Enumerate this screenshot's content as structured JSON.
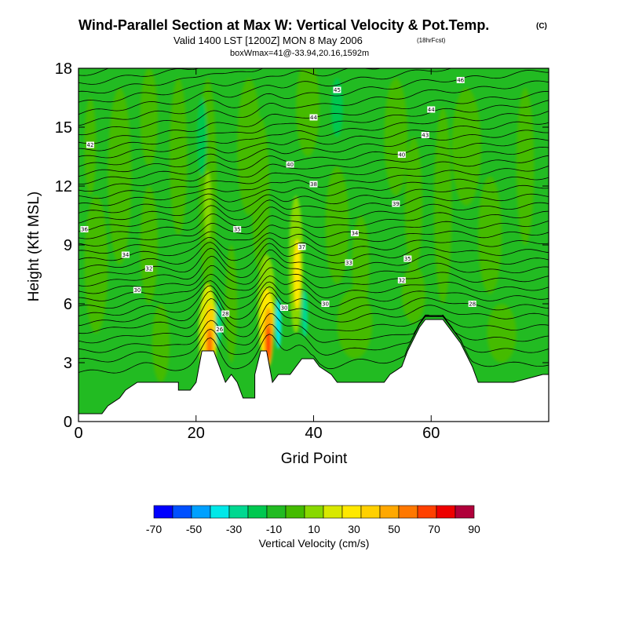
{
  "chart_data": {
    "type": "heatmap",
    "title": "Wind-Parallel Section at Max W: Vertical Velocity & Pot.Temp.",
    "title_mark": "(C)",
    "subtitle": "Valid 1400 LST [1200Z] MON 8 May 2006",
    "subtitle_note": "(18hrFcst)",
    "info": "boxWmax=41@-33.94,20.16,1592m",
    "xlabel": "Grid Point",
    "ylabel": "Height (Kft MSL)",
    "xlim": [
      0,
      80
    ],
    "ylim": [
      0,
      18
    ],
    "xticks": [
      0,
      20,
      40,
      60
    ],
    "yticks": [
      0,
      3,
      6,
      9,
      12,
      15,
      18
    ],
    "background_value": -5,
    "colorbar": {
      "label": "Vertical Velocity (cm/s)",
      "tick_labels": [
        "-70",
        "-50",
        "-30",
        "-10",
        "10",
        "30",
        "50",
        "70",
        "90"
      ],
      "bin_edges": [
        -70,
        -60,
        -50,
        -40,
        -30,
        -20,
        -10,
        0,
        10,
        20,
        30,
        40,
        50,
        60,
        70,
        80,
        90
      ],
      "colors": [
        "#0000ff",
        "#0050ff",
        "#00a0ff",
        "#00e8e8",
        "#00d890",
        "#00c850",
        "#22bb22",
        "#44bb00",
        "#88d800",
        "#d8e800",
        "#ffe800",
        "#ffd000",
        "#ffa800",
        "#ff7800",
        "#ff4000",
        "#ee0000",
        "#b0003a"
      ]
    },
    "terrain": [
      [
        0,
        0.4
      ],
      [
        4,
        0.4
      ],
      [
        5,
        0.8
      ],
      [
        7,
        1.2
      ],
      [
        8,
        1.6
      ],
      [
        10,
        2.0
      ],
      [
        17,
        2.0
      ],
      [
        17,
        1.6
      ],
      [
        19,
        1.6
      ],
      [
        20,
        2.0
      ],
      [
        21,
        3.6
      ],
      [
        23,
        3.6
      ],
      [
        24,
        2.8
      ],
      [
        25,
        2.0
      ],
      [
        26,
        2.4
      ],
      [
        27,
        2.0
      ],
      [
        28,
        1.2
      ],
      [
        30,
        1.2
      ],
      [
        30,
        2.4
      ],
      [
        31,
        3.6
      ],
      [
        32,
        3.6
      ],
      [
        33,
        2.0
      ],
      [
        34,
        2.4
      ],
      [
        36,
        2.4
      ],
      [
        37,
        2.8
      ],
      [
        38,
        3.2
      ],
      [
        40,
        3.2
      ],
      [
        41,
        2.8
      ],
      [
        43,
        2.4
      ],
      [
        44,
        2.0
      ],
      [
        52,
        2.0
      ],
      [
        53,
        2.4
      ],
      [
        55,
        2.8
      ],
      [
        56,
        3.6
      ],
      [
        58,
        4.8
      ],
      [
        59,
        5.2
      ],
      [
        62,
        5.2
      ],
      [
        63,
        4.8
      ],
      [
        65,
        4.0
      ],
      [
        67,
        2.8
      ],
      [
        68,
        2.0
      ],
      [
        73,
        2.0
      ],
      [
        74,
        2.0
      ],
      [
        79,
        2.4
      ],
      [
        80,
        2.4
      ]
    ],
    "field": [
      {
        "x": 2,
        "y": 14.0,
        "rx": 1.0,
        "ry": 2.5,
        "value": 5
      },
      {
        "x": 3,
        "y": 8.0,
        "rx": 2.0,
        "ry": 3.5,
        "value": 5
      },
      {
        "x": 7,
        "y": 12.5,
        "rx": 2.0,
        "ry": 4.5,
        "value": 5
      },
      {
        "x": 12,
        "y": 15.5,
        "rx": 1.5,
        "ry": 2.5,
        "value": 5
      },
      {
        "x": 12,
        "y": 9.0,
        "rx": 1.5,
        "ry": 3.0,
        "value": 5
      },
      {
        "x": 14,
        "y": 4.0,
        "rx": 1.5,
        "ry": 2.0,
        "value": 5
      },
      {
        "x": 17,
        "y": 13.5,
        "rx": 1.5,
        "ry": 4.0,
        "value": 5
      },
      {
        "x": 22,
        "y": 12.0,
        "rx": 1.5,
        "ry": 5.5,
        "value": 5
      },
      {
        "x": 22,
        "y": 11.0,
        "rx": 0.6,
        "ry": 1.8,
        "value": 15
      },
      {
        "x": 22,
        "y": 4.5,
        "rx": 1.5,
        "ry": 2.5,
        "value": 25
      },
      {
        "x": 22.3,
        "y": 4.2,
        "rx": 0.9,
        "ry": 1.8,
        "value": 45
      },
      {
        "x": 22.3,
        "y": 3.8,
        "rx": 0.5,
        "ry": 1.0,
        "value": 65
      },
      {
        "x": 23.8,
        "y": 5.0,
        "rx": 0.5,
        "ry": 1.2,
        "value": -30
      },
      {
        "x": 26,
        "y": 6.0,
        "rx": 1.0,
        "ry": 3.0,
        "value": 5
      },
      {
        "x": 29,
        "y": 14.0,
        "rx": 2.0,
        "ry": 3.5,
        "value": 5
      },
      {
        "x": 31,
        "y": 11.5,
        "rx": 1.5,
        "ry": 4.0,
        "value": 5
      },
      {
        "x": 32,
        "y": 6.0,
        "rx": 1.5,
        "ry": 2.5,
        "value": 15
      },
      {
        "x": 32,
        "y": 4.8,
        "rx": 1.2,
        "ry": 2.0,
        "value": 35
      },
      {
        "x": 32.3,
        "y": 4.3,
        "rx": 0.8,
        "ry": 1.5,
        "value": 55
      },
      {
        "x": 32.3,
        "y": 4.0,
        "rx": 0.4,
        "ry": 0.9,
        "value": 75
      },
      {
        "x": 34,
        "y": 5.0,
        "rx": 0.5,
        "ry": 1.3,
        "value": -40
      },
      {
        "x": 37,
        "y": 8.0,
        "rx": 1.2,
        "ry": 3.5,
        "value": 15
      },
      {
        "x": 37.2,
        "y": 7.5,
        "rx": 0.6,
        "ry": 1.8,
        "value": 35
      },
      {
        "x": 38.5,
        "y": 5.5,
        "rx": 0.5,
        "ry": 1.2,
        "value": -30
      },
      {
        "x": 39,
        "y": 16.0,
        "rx": 2.0,
        "ry": 2.5,
        "value": 5
      },
      {
        "x": 44,
        "y": 10.0,
        "rx": 2.0,
        "ry": 3.0,
        "value": 5
      },
      {
        "x": 47,
        "y": 5.0,
        "rx": 3.0,
        "ry": 1.8,
        "value": 5
      },
      {
        "x": 48,
        "y": 8.0,
        "rx": 1.5,
        "ry": 2.5,
        "value": 5
      },
      {
        "x": 54,
        "y": 14.5,
        "rx": 2.0,
        "ry": 3.0,
        "value": 5
      },
      {
        "x": 57,
        "y": 11.0,
        "rx": 1.5,
        "ry": 3.5,
        "value": 5
      },
      {
        "x": 57,
        "y": 6.5,
        "rx": 2.0,
        "ry": 1.5,
        "value": 5
      },
      {
        "x": 62,
        "y": 11.0,
        "rx": 1.5,
        "ry": 5.0,
        "value": 5
      },
      {
        "x": 66,
        "y": 14.0,
        "rx": 2.5,
        "ry": 3.0,
        "value": 5
      },
      {
        "x": 70,
        "y": 9.5,
        "rx": 2.0,
        "ry": 3.0,
        "value": 5
      },
      {
        "x": 72,
        "y": 4.5,
        "rx": 2.5,
        "ry": 1.5,
        "value": 5
      },
      {
        "x": 76,
        "y": 13.0,
        "rx": 1.5,
        "ry": 4.0,
        "value": 5
      },
      {
        "x": 21,
        "y": 14.5,
        "rx": 0.8,
        "ry": 2.0,
        "value": -15
      },
      {
        "x": 44,
        "y": 16.0,
        "rx": 1.0,
        "ry": 1.5,
        "value": -15
      }
    ],
    "contours": {
      "count": 36,
      "base_heights": [
        2.5,
        3.1,
        3.6,
        4.1,
        4.6,
        5.0,
        5.4,
        5.8,
        6.2,
        6.6,
        7.0,
        7.4,
        7.8,
        8.2,
        8.6,
        9.0,
        9.4,
        9.8,
        10.2,
        10.6,
        11.0,
        11.4,
        11.8,
        12.2,
        12.6,
        13.0,
        13.4,
        13.8,
        14.2,
        14.7,
        15.2,
        15.7,
        16.2,
        16.7,
        17.2,
        17.7
      ],
      "labels": [
        {
          "text": "26",
          "x": 24,
          "y": 4.7
        },
        {
          "text": "28",
          "x": 25,
          "y": 5.5
        },
        {
          "text": "30",
          "x": 10,
          "y": 6.7
        },
        {
          "text": "30",
          "x": 35,
          "y": 5.8
        },
        {
          "text": "30",
          "x": 42,
          "y": 6.0
        },
        {
          "text": "28",
          "x": 67,
          "y": 6.0
        },
        {
          "text": "32",
          "x": 12,
          "y": 7.8
        },
        {
          "text": "34",
          "x": 8,
          "y": 8.5
        },
        {
          "text": "36",
          "x": 1,
          "y": 9.8
        },
        {
          "text": "33",
          "x": 46,
          "y": 8.1
        },
        {
          "text": "34",
          "x": 47,
          "y": 9.6
        },
        {
          "text": "35",
          "x": 27,
          "y": 9.8
        },
        {
          "text": "37",
          "x": 38,
          "y": 8.9
        },
        {
          "text": "38",
          "x": 40,
          "y": 12.1
        },
        {
          "text": "39",
          "x": 54,
          "y": 11.1
        },
        {
          "text": "40",
          "x": 36,
          "y": 13.1
        },
        {
          "text": "40",
          "x": 55,
          "y": 13.6
        },
        {
          "text": "42",
          "x": 2,
          "y": 14.1
        },
        {
          "text": "43",
          "x": 59,
          "y": 14.6
        },
        {
          "text": "44",
          "x": 40,
          "y": 15.5
        },
        {
          "text": "44",
          "x": 60,
          "y": 15.9
        },
        {
          "text": "45",
          "x": 44,
          "y": 16.9
        },
        {
          "text": "46",
          "x": 65,
          "y": 17.4
        },
        {
          "text": "35",
          "x": 56,
          "y": 8.3
        },
        {
          "text": "32",
          "x": 55,
          "y": 7.2
        }
      ]
    }
  }
}
